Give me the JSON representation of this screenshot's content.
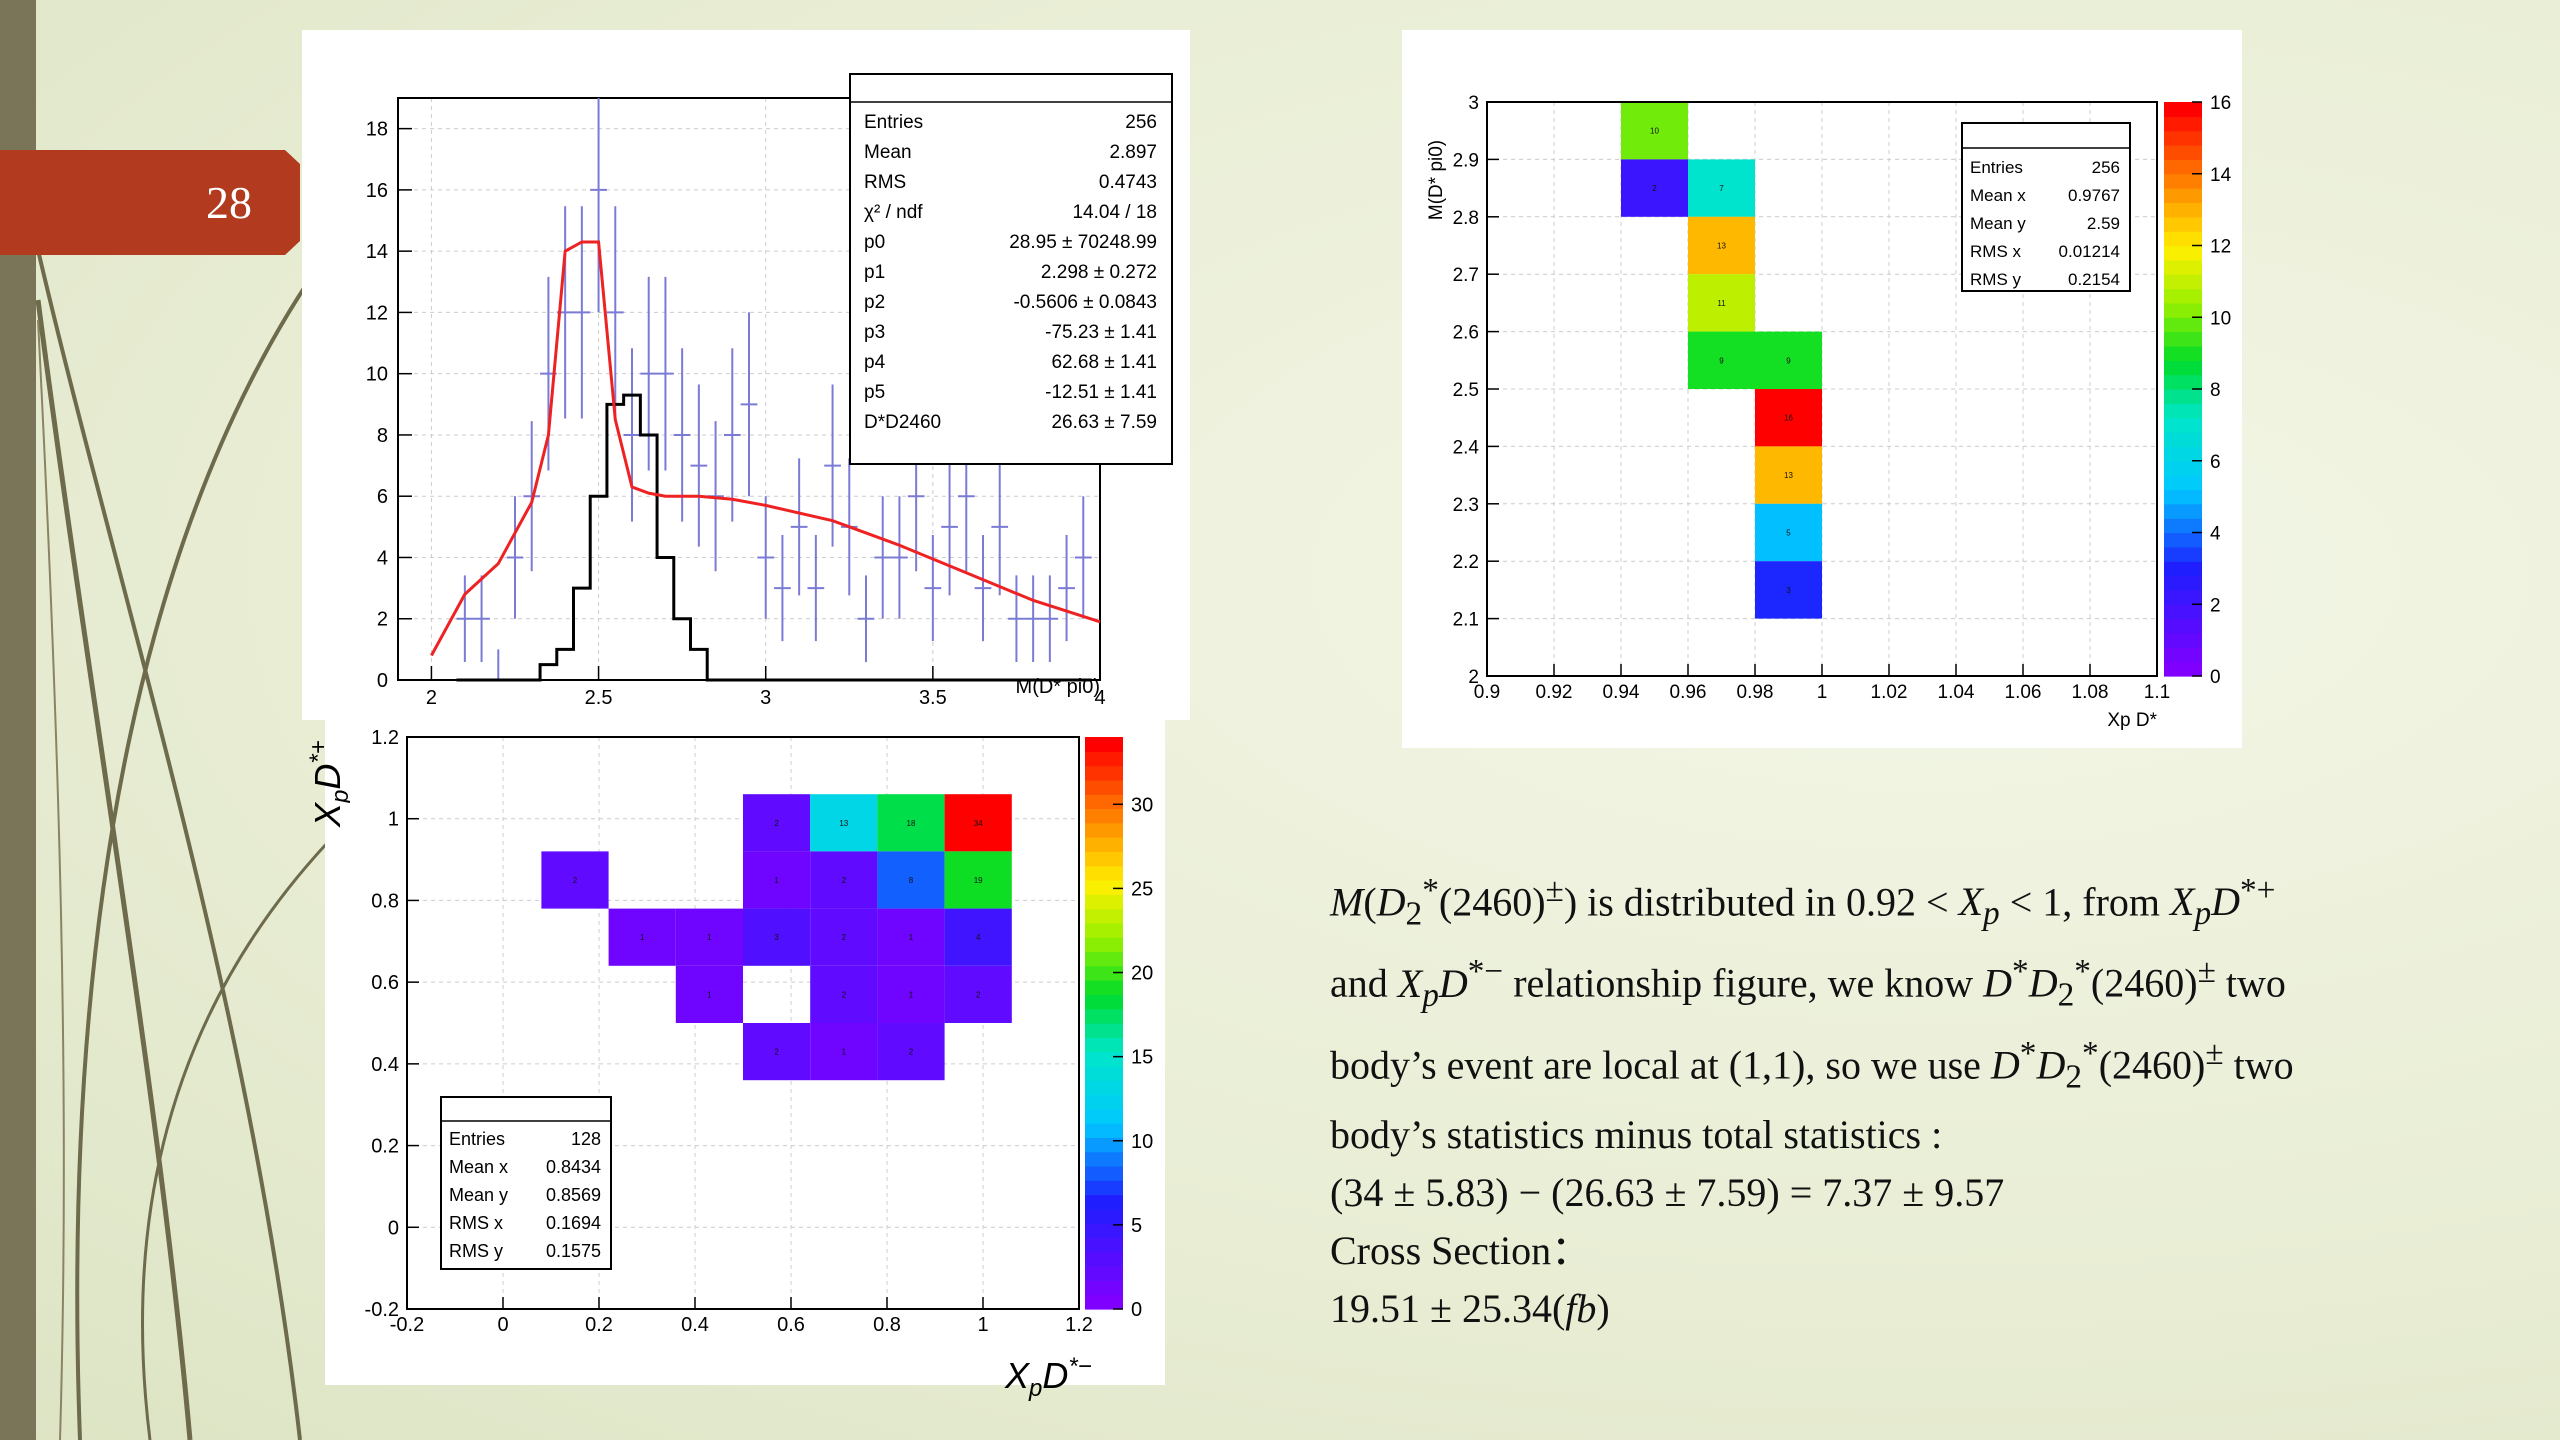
{
  "slide": {
    "page_number": "28"
  },
  "hist1d": {
    "xlabel": "M(D* pi0)",
    "x_ticks": [
      "2",
      "2.5",
      "3",
      "3.5",
      "4"
    ],
    "y_ticks": [
      "0",
      "2",
      "4",
      "6",
      "8",
      "10",
      "12",
      "14",
      "16",
      "18"
    ],
    "stats_rows": [
      {
        "k": "Entries",
        "v": "256"
      },
      {
        "k": "Mean",
        "v": "2.897"
      },
      {
        "k": "RMS",
        "v": "0.4743"
      },
      {
        "k": "χ² / ndf",
        "v": "14.04 / 18"
      },
      {
        "k": "p0",
        "v": "28.95 ± 70248.99"
      },
      {
        "k": "p1",
        "v": "2.298 ± 0.272"
      },
      {
        "k": "p2",
        "v": "-0.5606 ± 0.0843"
      },
      {
        "k": "p3",
        "v": "-75.23 ± 1.41"
      },
      {
        "k": "p4",
        "v": "62.68 ± 1.41"
      },
      {
        "k": "p5",
        "v": "-12.51 ± 1.41"
      },
      {
        "k": "D*D2460",
        "v": "26.63 ± 7.59"
      }
    ],
    "colors": {
      "data": "#7b7bd6",
      "fit": "#ee2222",
      "signal": "#000000"
    }
  },
  "heat_top": {
    "ylabel": "M(D* pi0)",
    "xlabel": "Xp D*",
    "x_ticks": [
      "0.9",
      "0.92",
      "0.94",
      "0.96",
      "0.98",
      "1",
      "1.02",
      "1.04",
      "1.06",
      "1.08",
      "1.1"
    ],
    "y_ticks": [
      "2",
      "2.1",
      "2.2",
      "2.3",
      "2.4",
      "2.5",
      "2.6",
      "2.7",
      "2.8",
      "2.9",
      "3"
    ],
    "z_ticks": [
      "0",
      "2",
      "4",
      "6",
      "8",
      "10",
      "12",
      "14",
      "16"
    ],
    "stats_rows": [
      {
        "k": "Entries",
        "v": "256"
      },
      {
        "k": "Mean x",
        "v": "0.9767"
      },
      {
        "k": "Mean y",
        "v": "2.59"
      },
      {
        "k": "RMS x",
        "v": "0.01214"
      },
      {
        "k": "RMS y",
        "v": "0.2154"
      }
    ]
  },
  "heat_bot": {
    "ylabel": "X",
    "y_sub": "p",
    "y_rest": "D",
    "y_sup": "*+",
    "xlabel": "X",
    "x_sub": "p",
    "x_rest": "D",
    "x_sup": "*−",
    "x_ticks": [
      "-0.2",
      "0",
      "0.2",
      "0.4",
      "0.6",
      "0.8",
      "1",
      "1.2"
    ],
    "y_ticks": [
      "-0.2",
      "0",
      "0.2",
      "0.4",
      "0.6",
      "0.8",
      "1",
      "1.2"
    ],
    "z_ticks": [
      "0",
      "5",
      "10",
      "15",
      "20",
      "25",
      "30"
    ],
    "stats_rows": [
      {
        "k": "Entries",
        "v": "128"
      },
      {
        "k": "Mean x",
        "v": "0.8434"
      },
      {
        "k": "Mean y",
        "v": "0.8569"
      },
      {
        "k": "RMS x",
        "v": "0.1694"
      },
      {
        "k": "RMS y",
        "v": "0.1575"
      }
    ]
  },
  "chart_data": [
    {
      "type": "bar",
      "x": [
        2.1,
        2.15,
        2.2,
        2.25,
        2.3,
        2.35,
        2.4,
        2.45,
        2.5,
        2.55,
        2.6,
        2.65,
        2.7,
        2.75,
        2.8,
        2.85,
        2.9,
        2.95,
        3.0,
        3.05,
        3.1,
        3.15,
        3.2,
        3.25,
        3.3,
        3.35,
        3.4,
        3.45,
        3.5,
        3.55,
        3.6,
        3.65,
        3.7,
        3.75,
        3.8,
        3.85,
        3.9,
        3.95
      ],
      "series": [
        {
          "values": [
            2,
            2,
            0,
            4,
            6,
            10,
            12,
            12,
            16,
            12,
            8,
            10,
            10,
            8,
            7,
            6,
            8,
            9,
            4,
            3,
            5,
            3,
            7,
            5,
            2,
            4,
            4,
            6,
            3,
            5,
            6,
            3,
            5,
            2,
            2,
            2,
            3,
            4
          ]
        },
        {
          "values": [
            0,
            0,
            0,
            0,
            0,
            0.5,
            1,
            3,
            6,
            9,
            9.3,
            8,
            4,
            2,
            1,
            0,
            0,
            0,
            0,
            0,
            0,
            0,
            0,
            0,
            0,
            0,
            0,
            0,
            0,
            0,
            0,
            0,
            0,
            0,
            0,
            0,
            0,
            0
          ]
        }
      ],
      "fit_curve": {
        "x": [
          2.0,
          2.1,
          2.2,
          2.3,
          2.35,
          2.4,
          2.45,
          2.5,
          2.55,
          2.6,
          2.65,
          2.7,
          2.8,
          2.9,
          3.0,
          3.2,
          3.4,
          3.6,
          3.8,
          4.0
        ],
        "y": [
          0.8,
          2.8,
          3.8,
          5.8,
          8.0,
          14.0,
          14.3,
          14.3,
          8.5,
          6.3,
          6.1,
          6.0,
          6.0,
          5.9,
          5.7,
          5.2,
          4.4,
          3.5,
          2.6,
          1.9
        ]
      },
      "xlabel": "M(D* pi0)",
      "xlim": [
        1.9,
        4.0
      ],
      "ylim": [
        0,
        19
      ]
    },
    {
      "type": "heatmap",
      "xlabel": "Xp D*",
      "ylabel": "M(D* pi0)",
      "xlim": [
        0.9,
        1.1
      ],
      "ylim": [
        2.0,
        3.0
      ],
      "zlim": [
        0,
        16
      ],
      "cell_w": 0.02,
      "cell_h": 0.1,
      "cells": [
        {
          "x": 0.94,
          "y": 2.9,
          "z": 10
        },
        {
          "x": 0.94,
          "y": 2.8,
          "z": 2
        },
        {
          "x": 0.96,
          "y": 2.8,
          "z": 7
        },
        {
          "x": 0.96,
          "y": 2.7,
          "z": 13
        },
        {
          "x": 0.96,
          "y": 2.6,
          "z": 11
        },
        {
          "x": 0.96,
          "y": 2.5,
          "z": 9
        },
        {
          "x": 0.98,
          "y": 2.5,
          "z": 9
        },
        {
          "x": 0.98,
          "y": 2.4,
          "z": 16
        },
        {
          "x": 0.98,
          "y": 2.3,
          "z": 13
        },
        {
          "x": 0.98,
          "y": 2.2,
          "z": 5
        },
        {
          "x": 0.98,
          "y": 2.1,
          "z": 3
        }
      ]
    },
    {
      "type": "heatmap",
      "xlim": [
        -0.2,
        1.2
      ],
      "ylim": [
        -0.2,
        1.2
      ],
      "zlim": [
        0,
        34
      ],
      "cell_w": 0.14,
      "cell_h": 0.14,
      "cells": [
        {
          "x": 0.5,
          "y": 0.92,
          "z": 2
        },
        {
          "x": 0.64,
          "y": 0.92,
          "z": 13
        },
        {
          "x": 0.78,
          "y": 0.92,
          "z": 18
        },
        {
          "x": 0.92,
          "y": 0.92,
          "z": 34
        },
        {
          "x": 0.08,
          "y": 0.78,
          "z": 2
        },
        {
          "x": 0.5,
          "y": 0.78,
          "z": 1
        },
        {
          "x": 0.64,
          "y": 0.78,
          "z": 2
        },
        {
          "x": 0.78,
          "y": 0.78,
          "z": 8
        },
        {
          "x": 0.92,
          "y": 0.78,
          "z": 19
        },
        {
          "x": 0.22,
          "y": 0.64,
          "z": 1
        },
        {
          "x": 0.36,
          "y": 0.64,
          "z": 1
        },
        {
          "x": 0.5,
          "y": 0.64,
          "z": 3
        },
        {
          "x": 0.64,
          "y": 0.64,
          "z": 2
        },
        {
          "x": 0.78,
          "y": 0.64,
          "z": 1
        },
        {
          "x": 0.92,
          "y": 0.64,
          "z": 4
        },
        {
          "x": 0.36,
          "y": 0.5,
          "z": 1
        },
        {
          "x": 0.64,
          "y": 0.5,
          "z": 2
        },
        {
          "x": 0.78,
          "y": 0.5,
          "z": 1
        },
        {
          "x": 0.92,
          "y": 0.5,
          "z": 2
        },
        {
          "x": 0.5,
          "y": 0.36,
          "z": 2
        },
        {
          "x": 0.64,
          "y": 0.36,
          "z": 1
        },
        {
          "x": 0.78,
          "y": 0.36,
          "z": 2
        }
      ]
    }
  ]
}
